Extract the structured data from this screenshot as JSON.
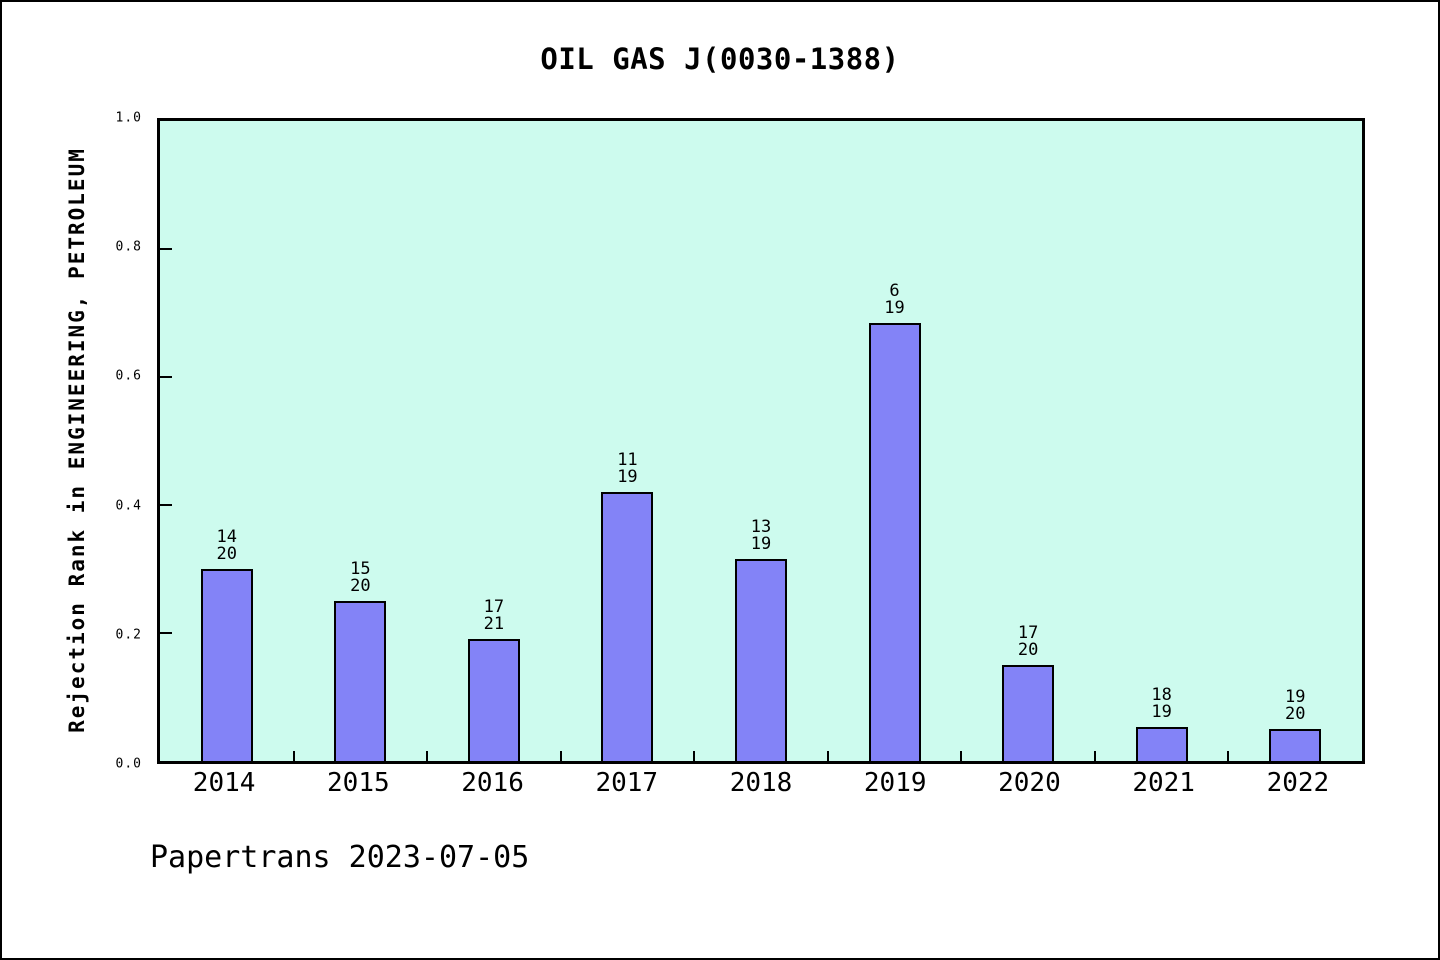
{
  "chart_data": {
    "type": "bar",
    "title": "OIL GAS J(0030-1388)",
    "ylabel": "Rejection Rank in ENGINEERING, PETROLEUM",
    "xlabel": "",
    "categories": [
      "2014",
      "2015",
      "2016",
      "2017",
      "2018",
      "2019",
      "2020",
      "2021",
      "2022"
    ],
    "values": [
      0.3,
      0.25,
      0.19,
      0.421,
      0.316,
      0.684,
      0.15,
      0.053,
      0.05
    ],
    "bar_labels": [
      {
        "rank": "14",
        "total": "20"
      },
      {
        "rank": "15",
        "total": "20"
      },
      {
        "rank": "17",
        "total": "21"
      },
      {
        "rank": "11",
        "total": "19"
      },
      {
        "rank": "13",
        "total": "19"
      },
      {
        "rank": "6",
        "total": "19"
      },
      {
        "rank": "17",
        "total": "20"
      },
      {
        "rank": "18",
        "total": "19"
      },
      {
        "rank": "19",
        "total": "20"
      }
    ],
    "ylim": [
      0.0,
      1.0
    ],
    "yticks": [
      "0.0",
      "0.2",
      "0.4",
      "0.6",
      "0.8",
      "1.0"
    ],
    "grid": false,
    "legend_position": "none",
    "colors": {
      "bar_fill": "#8383f7",
      "bar_edge": "#000000",
      "plot_bg": "#cdfbee",
      "canvas_bg": "#ffffff",
      "text": "#000000"
    },
    "footer": "Papertrans 2023-07-05"
  }
}
